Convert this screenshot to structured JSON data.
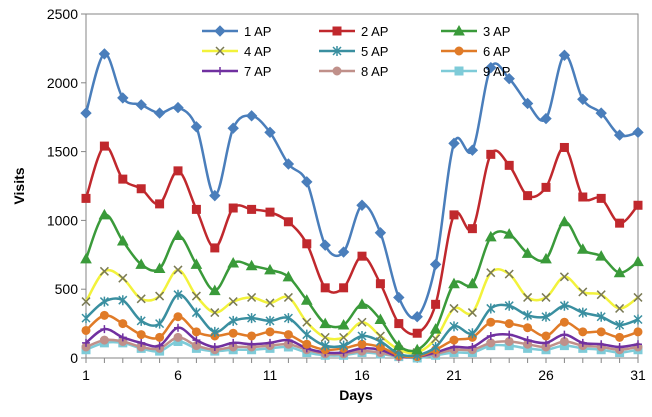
{
  "chart_data": {
    "type": "line",
    "title": "",
    "xlabel": "Days",
    "ylabel": "Visits",
    "xlim": [
      1,
      31
    ],
    "ylim": [
      0,
      2500
    ],
    "x_ticks": [
      1,
      6,
      11,
      16,
      21,
      26,
      31
    ],
    "y_ticks": [
      0,
      500,
      1000,
      1500,
      2000,
      2500
    ],
    "grid": false,
    "legend_position": "top-center",
    "x": [
      1,
      2,
      3,
      4,
      5,
      6,
      7,
      8,
      9,
      10,
      11,
      12,
      13,
      14,
      15,
      16,
      17,
      18,
      19,
      20,
      21,
      22,
      23,
      24,
      25,
      26,
      27,
      28,
      29,
      30,
      31
    ],
    "series": [
      {
        "name": "1 AP",
        "color": "#4a7ebb",
        "marker": "diamond",
        "values": [
          1780,
          2210,
          1890,
          1840,
          1780,
          1820,
          1680,
          1180,
          1670,
          1760,
          1640,
          1410,
          1280,
          820,
          770,
          1110,
          910,
          440,
          300,
          680,
          1560,
          1510,
          2110,
          2030,
          1850,
          1740,
          2200,
          1880,
          1780,
          1620,
          1640
        ]
      },
      {
        "name": "2 AP",
        "color": "#c0282d",
        "marker": "square",
        "values": [
          1160,
          1540,
          1300,
          1230,
          1120,
          1360,
          1080,
          800,
          1090,
          1080,
          1060,
          990,
          830,
          510,
          510,
          740,
          540,
          250,
          180,
          390,
          1040,
          940,
          1480,
          1400,
          1180,
          1240,
          1530,
          1170,
          1160,
          980,
          1110
        ]
      },
      {
        "name": "3 AP",
        "color": "#3a9a3a",
        "marker": "triangle",
        "values": [
          720,
          1040,
          850,
          680,
          650,
          890,
          680,
          490,
          690,
          670,
          640,
          590,
          420,
          250,
          240,
          390,
          280,
          90,
          60,
          210,
          540,
          540,
          880,
          900,
          760,
          720,
          990,
          790,
          740,
          620,
          700
        ]
      },
      {
        "name": "4 AP",
        "color": "#f2f23b",
        "stroke": "#7a7a55",
        "marker": "x",
        "values": [
          410,
          630,
          580,
          430,
          450,
          640,
          450,
          330,
          410,
          440,
          400,
          440,
          260,
          150,
          150,
          260,
          160,
          60,
          40,
          140,
          360,
          330,
          620,
          610,
          440,
          440,
          590,
          480,
          460,
          360,
          440
        ]
      },
      {
        "name": "5 AP",
        "color": "#3a8fa0",
        "marker": "star",
        "values": [
          290,
          410,
          420,
          270,
          250,
          460,
          330,
          190,
          270,
          290,
          270,
          290,
          170,
          90,
          90,
          160,
          120,
          30,
          20,
          80,
          230,
          180,
          360,
          380,
          310,
          300,
          380,
          330,
          300,
          240,
          280
        ]
      },
      {
        "name": "6 AP",
        "color": "#e07b28",
        "marker": "circle",
        "values": [
          200,
          310,
          250,
          170,
          150,
          300,
          190,
          160,
          180,
          160,
          190,
          170,
          100,
          60,
          70,
          100,
          80,
          20,
          10,
          60,
          130,
          150,
          260,
          250,
          220,
          160,
          260,
          190,
          190,
          150,
          190
        ]
      },
      {
        "name": "7 AP",
        "color": "#7030a0",
        "marker": "plus",
        "values": [
          110,
          210,
          150,
          110,
          90,
          220,
          130,
          80,
          110,
          100,
          110,
          130,
          70,
          40,
          40,
          70,
          60,
          10,
          10,
          40,
          80,
          80,
          160,
          170,
          130,
          110,
          170,
          110,
          100,
          80,
          100
        ]
      },
      {
        "name": "8 AP",
        "color": "#c0908a",
        "marker": "circle",
        "values": [
          80,
          130,
          120,
          80,
          70,
          150,
          90,
          60,
          80,
          80,
          90,
          100,
          60,
          30,
          30,
          50,
          40,
          10,
          10,
          30,
          60,
          60,
          110,
          120,
          100,
          80,
          120,
          90,
          80,
          60,
          80
        ]
      },
      {
        "name": "9 AP",
        "color": "#7ecbd8",
        "marker": "square",
        "values": [
          60,
          110,
          110,
          70,
          50,
          120,
          70,
          50,
          60,
          60,
          70,
          80,
          40,
          20,
          20,
          40,
          30,
          10,
          0,
          20,
          40,
          40,
          90,
          90,
          70,
          60,
          90,
          70,
          60,
          40,
          60
        ]
      }
    ]
  }
}
